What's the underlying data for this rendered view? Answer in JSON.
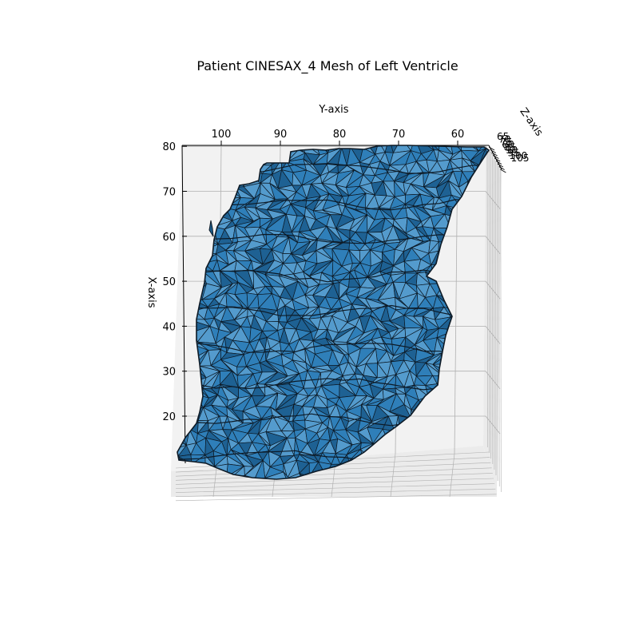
{
  "chart_data": {
    "type": "surface",
    "title": "Patient CINESAX_4 Mesh of Left Ventricle",
    "xlabel": "X-axis",
    "ylabel": "Y-axis",
    "zlabel": "Z-axis",
    "x_ticks": [
      20,
      30,
      40,
      50,
      60,
      70,
      80
    ],
    "y_ticks": [
      100,
      90,
      80,
      70,
      60
    ],
    "z_ticks": [
      65,
      70,
      75,
      80,
      85,
      90,
      95,
      100,
      105
    ],
    "z_tick_labels": [
      "65",
      "70",
      "75",
      "80",
      "85",
      "90",
      "95",
      "100",
      "105"
    ],
    "grid": true,
    "colors": {
      "face": "#2f7fb8",
      "face_light": "#5aa0d0",
      "face_dark": "#1b5c8c",
      "edge": "#0d1a26",
      "pane": "#f2f2f2",
      "pane_side": "#ebebeb",
      "grid": "#b0b0b0"
    }
  }
}
